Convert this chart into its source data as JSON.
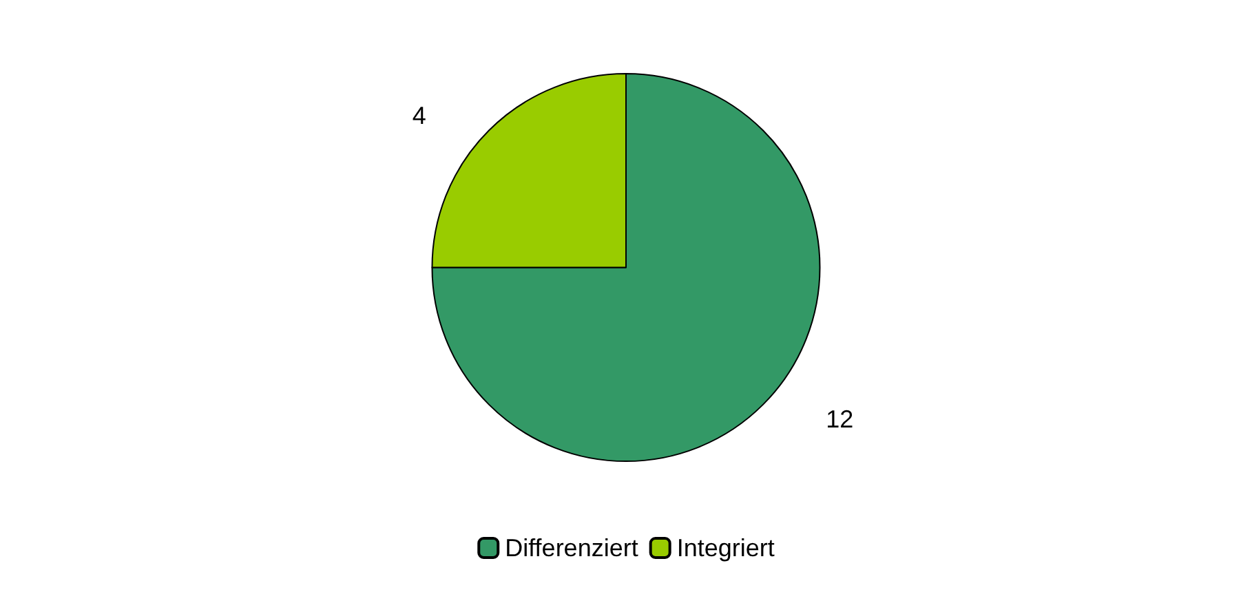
{
  "chart_data": {
    "type": "pie",
    "categories": [
      "Differenziert",
      "Integriert"
    ],
    "values": [
      12,
      4
    ],
    "colors": [
      "#339966",
      "#99cc00"
    ],
    "data_labels": true,
    "legend": "bottom"
  }
}
